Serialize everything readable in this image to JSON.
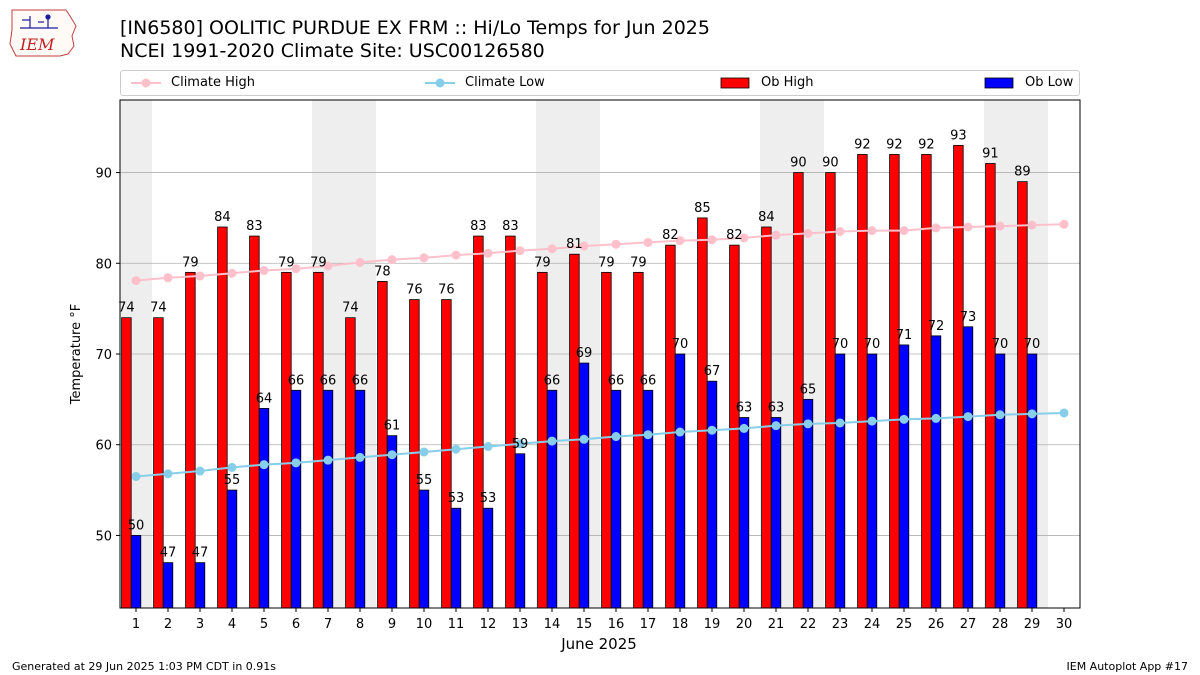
{
  "header": {
    "title_line1": "[IN6580] OOLITIC PURDUE EX FRM :: Hi/Lo Temps for Jun 2025",
    "title_line2": "NCEI 1991-2020 Climate Site: USC00126580",
    "logo_text": "IEM"
  },
  "legend": {
    "climate_high": "Climate High",
    "climate_low": "Climate Low",
    "ob_high": "Ob High",
    "ob_low": "Ob Low"
  },
  "footer": {
    "left": "Generated at 29 Jun 2025 1:03 PM CDT in 0.91s",
    "right": "IEM Autoplot App #17"
  },
  "colors": {
    "ob_high": "#ff0000",
    "ob_low": "#0000ff",
    "climate_high": "#ffc0cb",
    "climate_low": "#87ceeb",
    "weekend_shade": "#eeeeee",
    "grid": "#b0b0b0"
  },
  "chart_data": {
    "type": "bar",
    "xlabel": "June 2025",
    "ylabel": "Temperature °F",
    "ylim": [
      42,
      98
    ],
    "yticks": [
      50,
      60,
      70,
      80,
      90
    ],
    "grid": true,
    "legend_position": "top",
    "categories": [
      1,
      2,
      3,
      4,
      5,
      6,
      7,
      8,
      9,
      10,
      11,
      12,
      13,
      14,
      15,
      16,
      17,
      18,
      19,
      20,
      21,
      22,
      23,
      24,
      25,
      26,
      27,
      28,
      29,
      30
    ],
    "shaded_days": [
      1,
      7,
      8,
      14,
      15,
      21,
      22,
      28,
      29
    ],
    "series": [
      {
        "name": "Ob High",
        "kind": "bar",
        "values": [
          74,
          74,
          79,
          84,
          83,
          79,
          79,
          74,
          78,
          76,
          76,
          83,
          83,
          79,
          81,
          79,
          79,
          82,
          85,
          82,
          84,
          90,
          90,
          92,
          92,
          92,
          93,
          91,
          89,
          null
        ]
      },
      {
        "name": "Ob Low",
        "kind": "bar",
        "values": [
          50,
          47,
          47,
          55,
          64,
          66,
          66,
          66,
          61,
          55,
          53,
          53,
          59,
          66,
          69,
          66,
          66,
          70,
          67,
          63,
          63,
          65,
          70,
          70,
          71,
          72,
          73,
          70,
          70,
          null
        ]
      },
      {
        "name": "Climate High",
        "kind": "line",
        "values": [
          78.1,
          78.4,
          78.6,
          78.9,
          79.2,
          79.4,
          79.7,
          80.1,
          80.4,
          80.6,
          80.9,
          81.1,
          81.4,
          81.6,
          81.9,
          82.1,
          82.3,
          82.5,
          82.6,
          82.8,
          83.1,
          83.3,
          83.5,
          83.6,
          83.6,
          83.9,
          84.0,
          84.1,
          84.2,
          84.3
        ]
      },
      {
        "name": "Climate Low",
        "kind": "line",
        "values": [
          56.5,
          56.8,
          57.1,
          57.5,
          57.8,
          58.0,
          58.3,
          58.6,
          58.9,
          59.2,
          59.5,
          59.8,
          60.1,
          60.4,
          60.6,
          60.9,
          61.1,
          61.4,
          61.6,
          61.8,
          62.1,
          62.3,
          62.4,
          62.6,
          62.8,
          62.9,
          63.1,
          63.3,
          63.4,
          63.5
        ]
      }
    ]
  }
}
